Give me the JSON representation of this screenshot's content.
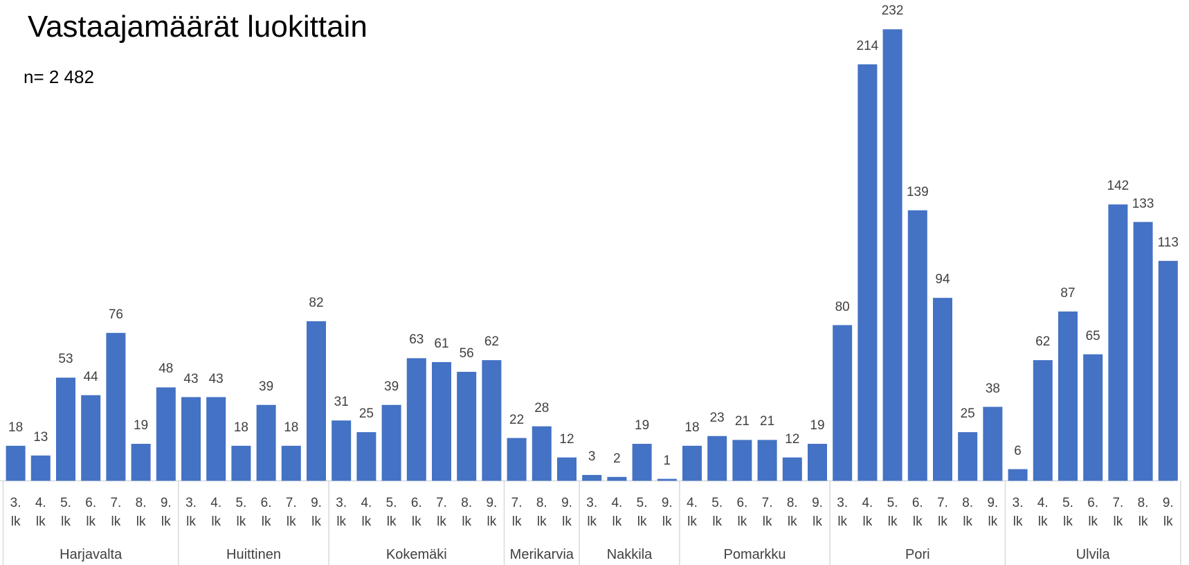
{
  "chart_data": {
    "type": "bar",
    "title": "Vastaajamäärät luokittain",
    "subtitle": "n= 2 482",
    "color": "#4472c4",
    "ylim": [
      0,
      240
    ],
    "groups": [
      {
        "name": "Harjavalta",
        "categories": [
          "3. lk",
          "4. lk",
          "5. lk",
          "6. lk",
          "7. lk",
          "8. lk",
          "9. lk"
        ],
        "values": [
          18,
          13,
          53,
          44,
          76,
          19,
          48
        ]
      },
      {
        "name": "Huittinen",
        "categories": [
          "3. lk",
          "4. lk",
          "5. lk",
          "6. lk",
          "7. lk",
          "9. lk"
        ],
        "values": [
          43,
          43,
          18,
          39,
          18,
          82
        ]
      },
      {
        "name": "Kokemäki",
        "categories": [
          "3. lk",
          "4. lk",
          "5. lk",
          "6. lk",
          "7. lk",
          "8. lk",
          "9. lk"
        ],
        "values": [
          31,
          25,
          39,
          63,
          61,
          56,
          62
        ]
      },
      {
        "name": "Merikarvia",
        "categories": [
          "7. lk",
          "8. lk",
          "9. lk"
        ],
        "values": [
          22,
          28,
          12
        ]
      },
      {
        "name": "Nakkila",
        "categories": [
          "3. lk",
          "4. lk",
          "5. lk",
          "9. lk"
        ],
        "values": [
          3,
          2,
          19,
          1
        ]
      },
      {
        "name": "Pomarkku",
        "categories": [
          "4. lk",
          "5. lk",
          "6. lk",
          "7. lk",
          "8. lk",
          "9. lk"
        ],
        "values": [
          18,
          23,
          21,
          21,
          12,
          19
        ]
      },
      {
        "name": "Pori",
        "categories": [
          "3. lk",
          "4. lk",
          "5. lk",
          "6. lk",
          "7. lk",
          "8. lk",
          "9. lk"
        ],
        "values": [
          80,
          214,
          232,
          139,
          94,
          25,
          38
        ]
      },
      {
        "name": "Ulvila",
        "categories": [
          "3. lk",
          "4. lk",
          "5. lk",
          "6. lk",
          "7. lk",
          "8. lk",
          "9. lk"
        ],
        "values": [
          6,
          62,
          87,
          65,
          142,
          133,
          113
        ]
      }
    ]
  }
}
